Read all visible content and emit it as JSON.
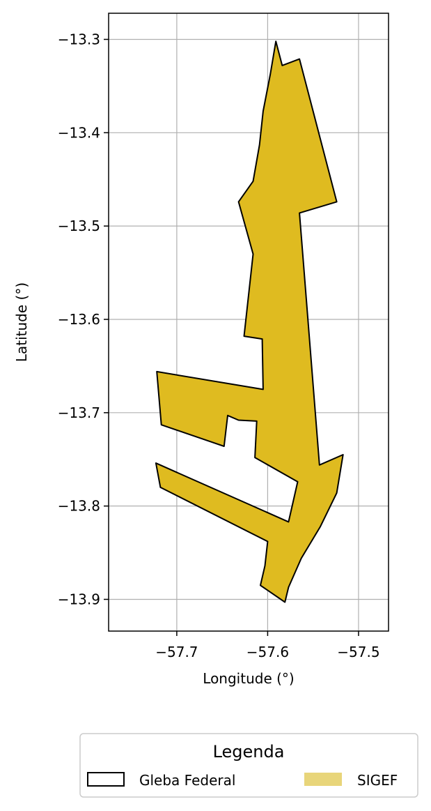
{
  "map": {
    "xlabel": "Longitude (°)",
    "ylabel": "Latitude (°)",
    "xlim": [
      -57.775,
      -57.467
    ],
    "ylim": [
      -13.934,
      -13.272
    ],
    "grid": true,
    "x_ticks": [
      {
        "value": -57.7,
        "label": "−57.7"
      },
      {
        "value": -57.6,
        "label": "−57.6"
      },
      {
        "value": -57.5,
        "label": "−57.5"
      }
    ],
    "y_ticks": [
      {
        "value": -13.3,
        "label": "−13.3"
      },
      {
        "value": -13.4,
        "label": "−13.4"
      },
      {
        "value": -13.5,
        "label": "−13.5"
      },
      {
        "value": -13.6,
        "label": "−13.6"
      },
      {
        "value": -13.7,
        "label": "−13.7"
      },
      {
        "value": -13.8,
        "label": "−13.8"
      },
      {
        "value": -13.9,
        "label": "−13.9"
      }
    ]
  },
  "legend": {
    "title": "Legenda",
    "placement": "bottom-center, below plot",
    "items": [
      {
        "label": "Gleba Federal",
        "style": "outline",
        "edge_color": "#000000",
        "fill": "none"
      },
      {
        "label": "SIGEF",
        "style": "filled",
        "fill": "#e8d57a"
      }
    ]
  },
  "colors": {
    "sigef_fill": "#dfbb20",
    "boundary": "#000000",
    "grid": "#b0b0b0"
  },
  "chart_data": {
    "type": "map",
    "layers": [
      {
        "name": "SIGEF",
        "fill": "#dfbb20",
        "edge": "#000000",
        "coordinates": [
          [
            -57.591,
            -13.302
          ],
          [
            -57.584,
            -13.328
          ],
          [
            -57.565,
            -13.321
          ],
          [
            -57.524,
            -13.474
          ],
          [
            -57.565,
            -13.486
          ],
          [
            -57.543,
            -13.756
          ],
          [
            -57.517,
            -13.745
          ],
          [
            -57.524,
            -13.786
          ],
          [
            -57.542,
            -13.822
          ],
          [
            -57.563,
            -13.856
          ],
          [
            -57.577,
            -13.887
          ],
          [
            -57.581,
            -13.903
          ],
          [
            -57.608,
            -13.885
          ],
          [
            -57.603,
            -13.864
          ],
          [
            -57.6,
            -13.838
          ],
          [
            -57.718,
            -13.78
          ],
          [
            -57.723,
            -13.754
          ],
          [
            -57.577,
            -13.817
          ],
          [
            -57.567,
            -13.774
          ],
          [
            -57.614,
            -13.748
          ],
          [
            -57.612,
            -13.709
          ],
          [
            -57.632,
            -13.708
          ],
          [
            -57.644,
            -13.703
          ],
          [
            -57.648,
            -13.736
          ],
          [
            -57.717,
            -13.713
          ],
          [
            -57.722,
            -13.656
          ],
          [
            -57.605,
            -13.675
          ],
          [
            -57.606,
            -13.621
          ],
          [
            -57.626,
            -13.618
          ],
          [
            -57.616,
            -13.53
          ],
          [
            -57.632,
            -13.474
          ],
          [
            -57.616,
            -13.452
          ],
          [
            -57.609,
            -13.413
          ],
          [
            -57.605,
            -13.377
          ],
          [
            -57.597,
            -13.337
          ]
        ]
      }
    ]
  }
}
